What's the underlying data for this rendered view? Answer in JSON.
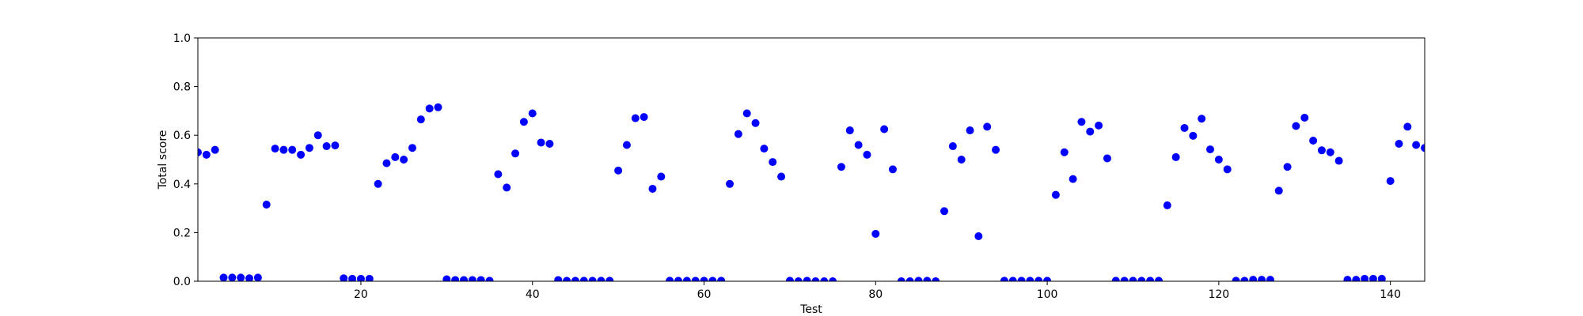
{
  "chart_data": {
    "type": "scatter",
    "xlabel": "Test",
    "ylabel": "Total score",
    "xlim": [
      1,
      144
    ],
    "ylim": [
      0.0,
      1.0
    ],
    "xticks": [
      20,
      40,
      60,
      80,
      100,
      120,
      140
    ],
    "xtick_labels": [
      "20",
      "40",
      "60",
      "80",
      "100",
      "120",
      "140"
    ],
    "yticks": [
      0.0,
      0.2,
      0.4,
      0.6,
      0.8,
      1.0
    ],
    "ytick_labels": [
      "0.0",
      "0.2",
      "0.4",
      "0.6",
      "0.8",
      "1.0"
    ],
    "grid": false,
    "marker_color": "#0000ff",
    "series": [
      {
        "x": [
          1,
          2,
          3,
          4,
          5,
          6,
          7,
          8,
          9,
          10,
          11,
          12,
          13,
          14,
          15,
          16,
          17,
          18,
          19,
          20,
          21,
          22,
          23,
          24,
          25,
          26,
          27,
          28,
          29,
          30,
          31,
          32,
          33,
          34,
          35,
          36,
          37,
          38,
          39,
          40,
          41,
          42,
          43,
          44,
          45,
          46,
          47,
          48,
          49,
          50,
          51,
          52,
          53,
          54,
          55,
          56,
          57,
          58,
          59,
          60,
          61,
          62,
          63,
          64,
          65,
          66,
          67,
          68,
          69,
          70,
          71,
          72,
          73,
          74,
          75,
          76,
          77,
          78,
          79,
          80,
          81,
          82,
          83,
          84,
          85,
          86,
          87,
          88,
          89,
          90,
          91,
          92,
          93,
          94,
          95,
          96,
          97,
          98,
          99,
          100,
          101,
          102,
          103,
          104,
          105,
          106,
          107,
          108,
          109,
          110,
          111,
          112,
          113,
          114,
          115,
          116,
          117,
          118,
          119,
          120,
          121,
          122,
          123,
          124,
          125,
          126,
          127,
          128,
          129,
          130,
          131,
          132,
          133,
          134,
          135,
          136,
          137,
          138,
          139,
          140,
          141,
          142,
          143,
          144
        ],
        "y": [
          0.53,
          0.52,
          0.54,
          0.015,
          0.015,
          0.015,
          0.012,
          0.015,
          0.315,
          0.545,
          0.54,
          0.54,
          0.52,
          0.548,
          0.6,
          0.555,
          0.558,
          0.012,
          0.01,
          0.01,
          0.01,
          0.4,
          0.485,
          0.51,
          0.5,
          0.548,
          0.665,
          0.71,
          0.715,
          0.008,
          0.005,
          0.005,
          0.005,
          0.005,
          0.002,
          0.44,
          0.385,
          0.525,
          0.655,
          0.69,
          0.57,
          0.565,
          0.005,
          0.002,
          0.002,
          0.002,
          0.002,
          0.002,
          0.002,
          0.455,
          0.56,
          0.67,
          0.675,
          0.38,
          0.43,
          0.002,
          0.002,
          0.002,
          0.002,
          0.002,
          0.002,
          0.002,
          0.4,
          0.605,
          0.69,
          0.65,
          0.545,
          0.49,
          0.43,
          0.002,
          0.0,
          0.002,
          0.0,
          0.0,
          0.0,
          0.47,
          0.62,
          0.56,
          0.52,
          0.195,
          0.625,
          0.46,
          0.0,
          0.0,
          0.002,
          0.002,
          0.0,
          0.288,
          0.555,
          0.5,
          0.62,
          0.185,
          0.635,
          0.54,
          0.002,
          0.002,
          0.002,
          0.002,
          0.002,
          0.002,
          0.355,
          0.53,
          0.42,
          0.655,
          0.615,
          0.64,
          0.505,
          0.002,
          0.002,
          0.002,
          0.002,
          0.002,
          0.002,
          0.312,
          0.51,
          0.63,
          0.598,
          0.668,
          0.542,
          0.5,
          0.46,
          0.002,
          0.002,
          0.006,
          0.006,
          0.006,
          0.372,
          0.47,
          0.638,
          0.672,
          0.578,
          0.538,
          0.53,
          0.495,
          0.006,
          0.006,
          0.01,
          0.01,
          0.01,
          0.412,
          0.565,
          0.635,
          0.56,
          0.548
        ]
      }
    ]
  }
}
